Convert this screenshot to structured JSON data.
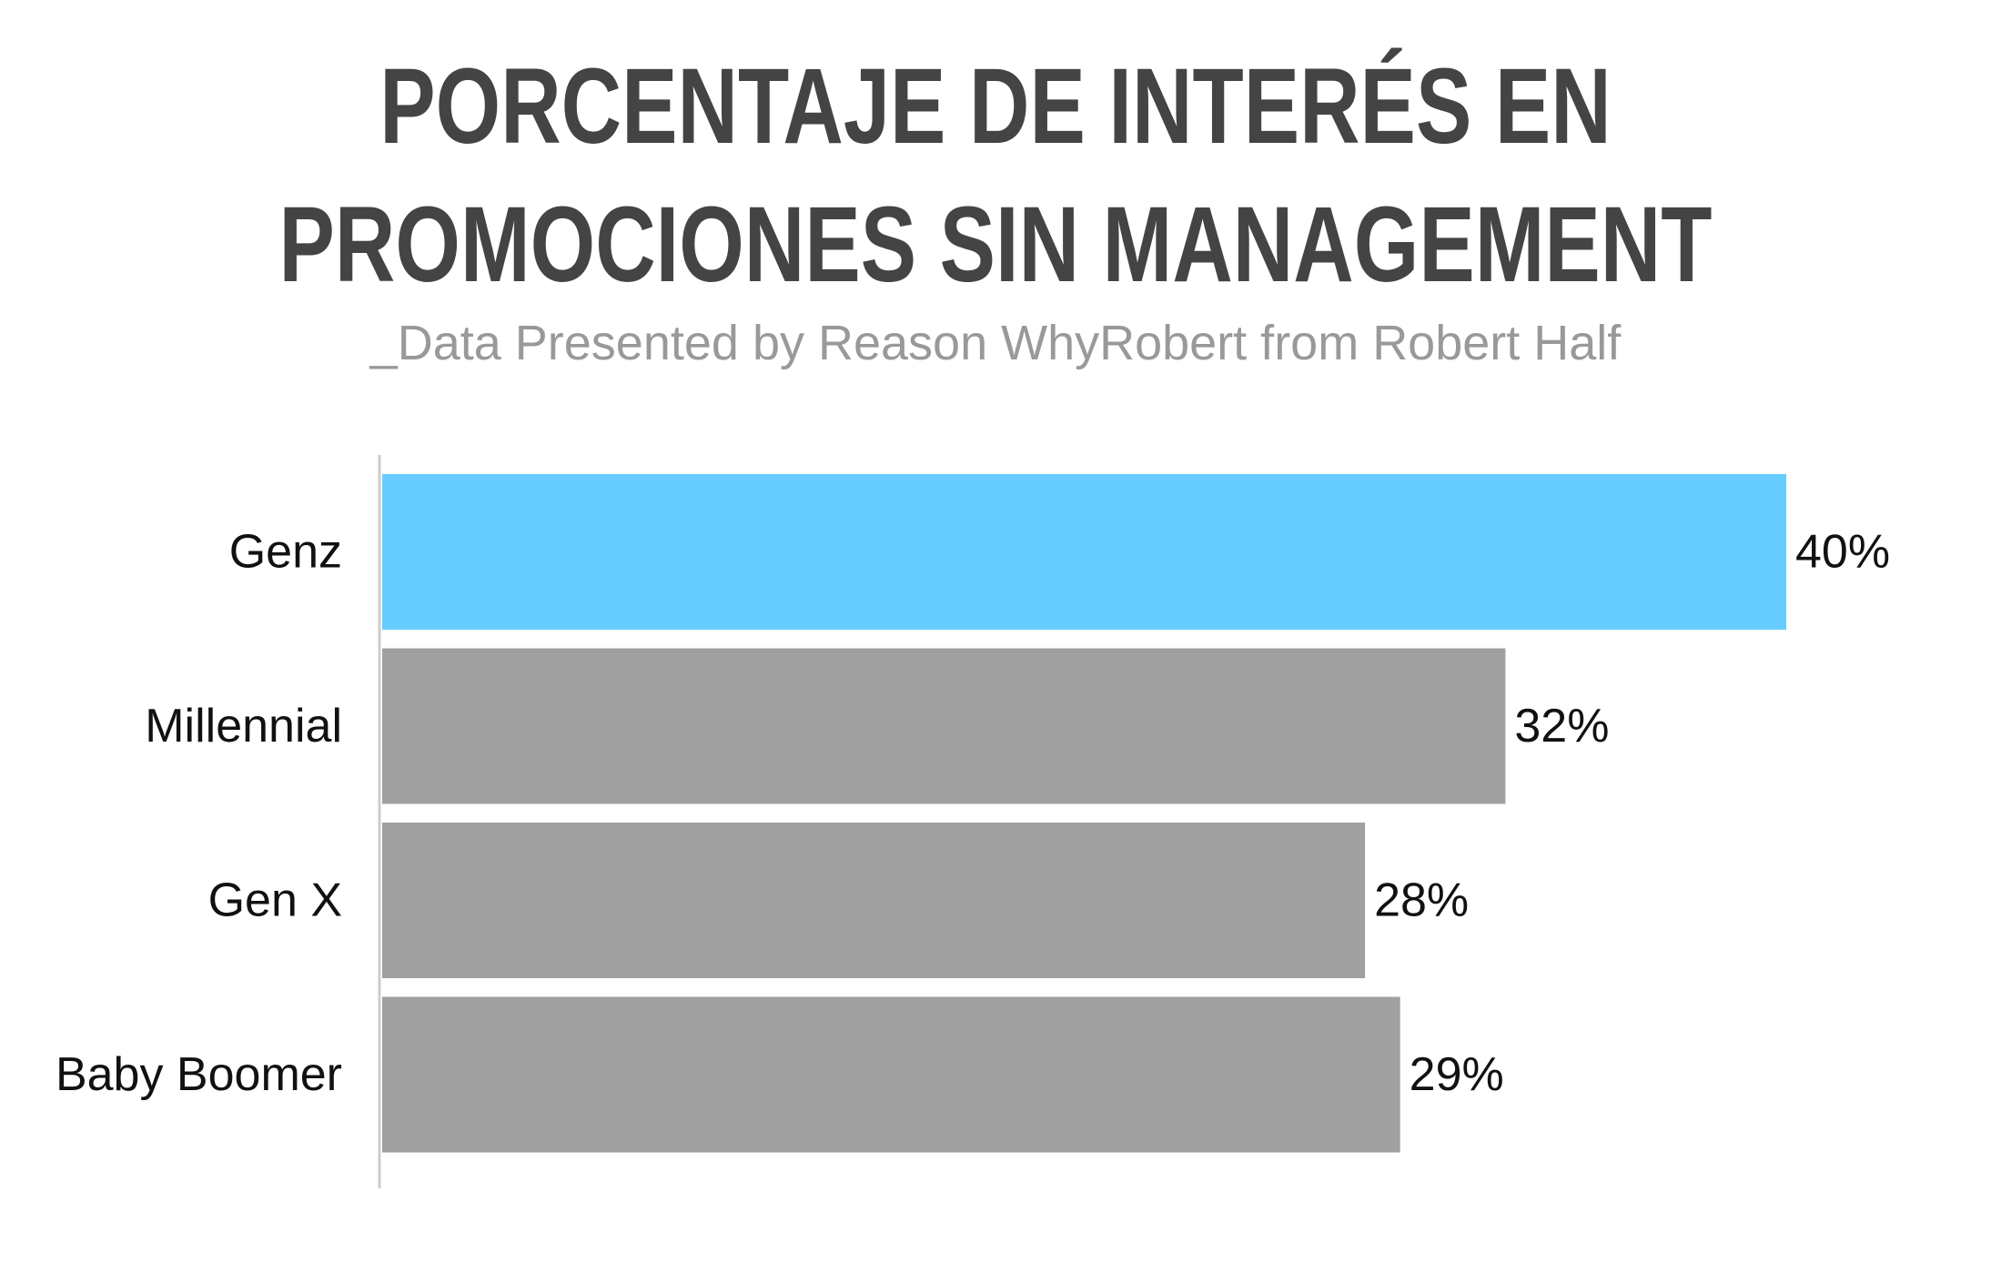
{
  "title_lines": [
    "PORCENTAJE DE INTERÉS EN",
    "PROMOCIONES SIN MANAGEMENT"
  ],
  "subtitle": "_Data Presented by Reason WhyRobert from Robert Half",
  "chart_data": {
    "type": "bar",
    "orientation": "horizontal",
    "title": "PORCENTAJE DE INTERÉS EN PROMOCIONES SIN MANAGEMENT",
    "subtitle": "_Data Presented by Reason WhyRobert from Robert Half",
    "categories": [
      "Genz",
      "Millennial",
      "Gen X",
      "Baby Boomer"
    ],
    "values": [
      40,
      32,
      28,
      29
    ],
    "value_labels": [
      "40%",
      "32%",
      "28%",
      "29%"
    ],
    "unit": "%",
    "xlim": [
      0,
      40
    ],
    "grid": false,
    "colors": {
      "highlight": "#66CCFF",
      "default": "#A0A0A0",
      "axis": "#CCCCCC",
      "title": "#444444",
      "subtitle": "#999999",
      "label": "#111111"
    },
    "highlight_index": 0
  }
}
